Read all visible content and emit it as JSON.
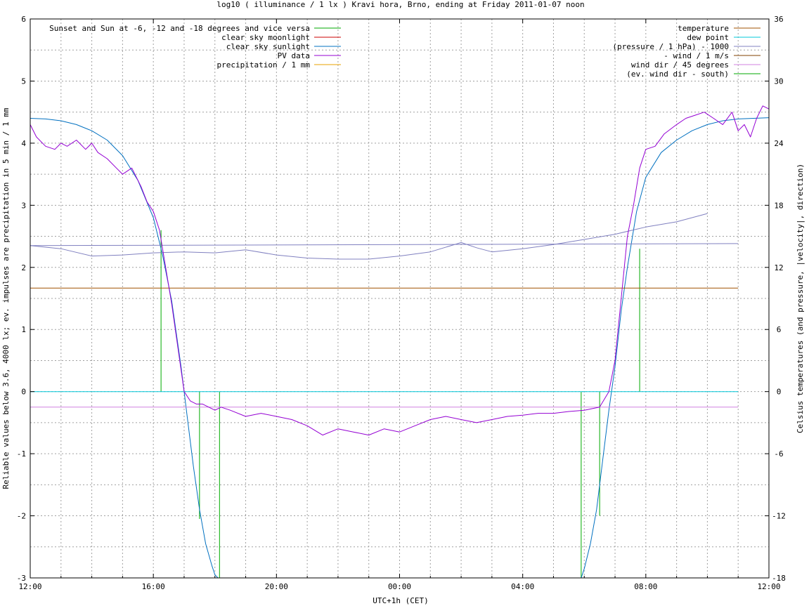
{
  "chart_data": {
    "type": "line",
    "title": "log10 ( illuminance / 1 lx ) Kravi hora, Brno, ending at Friday 2011-01-07 noon",
    "xlabel": "UTC+1h (CET)",
    "ylabel": "Reliable values below 3.6, 4000 lx; ev. impulses are precipitation in 5 min / 1 mm",
    "y2label": "Celsius temperatures (and pressure, |velocity|, direction)",
    "xlim": [
      0,
      24
    ],
    "ylim": [
      -3,
      6
    ],
    "y2lim": [
      -18,
      36
    ],
    "grid": true,
    "x_ticks": [
      {
        "v": 0,
        "label": "12:00"
      },
      {
        "v": 4,
        "label": "16:00"
      },
      {
        "v": 8,
        "label": "20:00"
      },
      {
        "v": 12,
        "label": "00:00"
      },
      {
        "v": 16,
        "label": "04:00"
      },
      {
        "v": 20,
        "label": "08:00"
      },
      {
        "v": 24,
        "label": "12:00"
      }
    ],
    "x_minor_grid": [
      1,
      2,
      3,
      5,
      6,
      7,
      9,
      10,
      11,
      13,
      14,
      15,
      17,
      18,
      19,
      21,
      22,
      23
    ],
    "y_ticks": [
      {
        "v": -3,
        "label": "-3"
      },
      {
        "v": -2,
        "label": "-2"
      },
      {
        "v": -1,
        "label": "-1"
      },
      {
        "v": 0,
        "label": "0"
      },
      {
        "v": 1,
        "label": "1"
      },
      {
        "v": 2,
        "label": "2"
      },
      {
        "v": 3,
        "label": "3"
      },
      {
        "v": 4,
        "label": "4"
      },
      {
        "v": 5,
        "label": "5"
      },
      {
        "v": 6,
        "label": "6"
      }
    ],
    "y_minor_grid": [
      -2.5,
      -1.5,
      -0.5,
      0.5,
      1.5,
      2.5,
      3.5,
      4.5,
      5.5
    ],
    "y2_ticks": [
      {
        "v": -18,
        "label": "-18"
      },
      {
        "v": -12,
        "label": "-12"
      },
      {
        "v": -6,
        "label": "-6"
      },
      {
        "v": 0,
        "label": "0"
      },
      {
        "v": 6,
        "label": "6"
      },
      {
        "v": 12,
        "label": "12"
      },
      {
        "v": 18,
        "label": "18"
      },
      {
        "v": 24,
        "label": "24"
      },
      {
        "v": 30,
        "label": "30"
      },
      {
        "v": 36,
        "label": "36"
      }
    ],
    "legend_left": [
      {
        "name": "Sunset and Sun at -6, -12 and -18 degrees and vice versa",
        "color": "#00aa00"
      },
      {
        "name": "clear sky moonlight",
        "color": "#cc0000"
      },
      {
        "name": "clear sky sunlight",
        "color": "#0070c0"
      },
      {
        "name": "PV data",
        "color": "#9400d3"
      },
      {
        "name": "precipitation / 1 mm",
        "color": "#e8a000"
      }
    ],
    "legend_right": [
      {
        "name": "temperature",
        "color": "#a05000"
      },
      {
        "name": "dew point",
        "color": "#00c8d8"
      },
      {
        "name": "(pressure / 1 hPa) - 1000",
        "color": "#8080c0"
      },
      {
        "name": "- wind / 1 m/s",
        "color": "#804000"
      },
      {
        "name": "wind dir / 45 degrees",
        "color": "#d080e0"
      },
      {
        "name": "(ev. wind dir - south)",
        "color": "#00aa00"
      }
    ],
    "sun_events": [
      {
        "x": 4.25,
        "y": 2.6
      },
      {
        "x": 5.5,
        "y": -2.05
      },
      {
        "x": 6.15,
        "y": -3
      },
      {
        "x": 17.9,
        "y": -3
      },
      {
        "x": 18.5,
        "y": -2.0
      },
      {
        "x": 19.8,
        "y": 2.3
      }
    ],
    "series": [
      {
        "name": "clear sky sunlight",
        "axis": "y",
        "color": "#0070c0",
        "x": [
          0,
          0.5,
          1,
          1.5,
          2,
          2.5,
          3,
          3.5,
          4,
          4.3,
          4.6,
          4.9,
          5.1,
          5.3,
          5.5,
          5.7,
          5.9,
          6.0,
          6.1,
          17.9,
          18.0,
          18.2,
          18.4,
          18.6,
          18.8,
          19.0,
          19.2,
          19.4,
          19.7,
          20.0,
          20.5,
          21,
          21.5,
          22,
          22.5,
          23,
          23.5,
          24
        ],
        "y": [
          4.4,
          4.39,
          4.36,
          4.3,
          4.2,
          4.05,
          3.8,
          3.4,
          2.8,
          2.2,
          1.45,
          0.4,
          -0.4,
          -1.2,
          -1.9,
          -2.45,
          -2.8,
          -2.95,
          -3.0,
          -3.0,
          -2.85,
          -2.45,
          -1.9,
          -1.1,
          -0.3,
          0.4,
          1.3,
          2.0,
          2.9,
          3.45,
          3.85,
          4.05,
          4.2,
          4.3,
          4.36,
          4.39,
          4.4,
          4.41
        ]
      },
      {
        "name": "PV data",
        "axis": "y",
        "color": "#9400d3",
        "x": [
          0,
          0.2,
          0.5,
          0.8,
          1.0,
          1.2,
          1.5,
          1.8,
          2.0,
          2.2,
          2.5,
          2.8,
          3.0,
          3.3,
          3.6,
          3.8,
          4.0,
          4.2,
          4.4,
          4.6,
          4.8,
          5.0,
          5.2,
          5.4,
          5.6,
          5.8,
          6.0,
          6.2,
          6.5,
          7,
          7.5,
          8,
          8.5,
          9,
          9.5,
          10,
          10.5,
          11,
          11.5,
          12,
          12.5,
          13,
          13.5,
          14,
          14.5,
          15,
          15.5,
          16,
          16.5,
          17,
          17.5,
          18,
          18.5,
          18.8,
          19.0,
          19.2,
          19.4,
          19.6,
          19.8,
          20.0,
          20.3,
          20.6,
          21.0,
          21.3,
          21.6,
          21.9,
          22.2,
          22.5,
          22.8,
          23.0,
          23.2,
          23.4,
          23.6,
          23.8,
          24.0
        ],
        "y": [
          4.3,
          4.1,
          3.95,
          3.9,
          4.0,
          3.95,
          4.05,
          3.9,
          4.0,
          3.85,
          3.75,
          3.6,
          3.5,
          3.6,
          3.3,
          3.05,
          2.9,
          2.6,
          2.0,
          1.4,
          0.7,
          0.0,
          -0.15,
          -0.2,
          -0.2,
          -0.25,
          -0.3,
          -0.25,
          -0.3,
          -0.4,
          -0.35,
          -0.4,
          -0.45,
          -0.55,
          -0.7,
          -0.6,
          -0.65,
          -0.7,
          -0.6,
          -0.65,
          -0.55,
          -0.45,
          -0.4,
          -0.45,
          -0.5,
          -0.45,
          -0.4,
          -0.38,
          -0.35,
          -0.35,
          -0.32,
          -0.3,
          -0.25,
          0.0,
          0.5,
          1.5,
          2.5,
          3.0,
          3.6,
          3.9,
          3.95,
          4.15,
          4.3,
          4.4,
          4.45,
          4.5,
          4.4,
          4.3,
          4.5,
          4.2,
          4.3,
          4.1,
          4.4,
          4.6,
          4.55
        ]
      },
      {
        "name": "temperature",
        "axis": "y2",
        "color": "#a05000",
        "x": [
          0,
          23
        ],
        "y": [
          10,
          10
        ]
      },
      {
        "name": "dew point",
        "axis": "y2",
        "color": "#00c8d8",
        "x": [
          0,
          23
        ],
        "y": [
          0,
          0
        ]
      },
      {
        "name": "(pressure / 1 hPa) - 1000",
        "axis": "y2",
        "color": "#8080c0",
        "x": [
          0,
          23
        ],
        "y": [
          14.1,
          14.3
        ]
      },
      {
        "name": "(pressure / 1 hPa) - 1000",
        "axis": "y2",
        "color": "#8080c0",
        "x": [
          0,
          1,
          2,
          3,
          4,
          5,
          6,
          7,
          8,
          9,
          10,
          11,
          12,
          13,
          14,
          14.5,
          15,
          16,
          17,
          18,
          19,
          20,
          21,
          22
        ],
        "y": [
          14.1,
          13.8,
          13.1,
          13.2,
          13.4,
          13.5,
          13.4,
          13.7,
          13.2,
          12.9,
          12.8,
          12.8,
          13.1,
          13.5,
          14.4,
          13.9,
          13.5,
          13.8,
          14.2,
          14.7,
          15.2,
          15.9,
          16.4,
          17.2
        ]
      },
      {
        "name": "wind dir / 45 degrees",
        "axis": "y2",
        "color": "#d080e0",
        "x": [
          0,
          23
        ],
        "y": [
          -1.5,
          -1.5
        ]
      }
    ]
  }
}
